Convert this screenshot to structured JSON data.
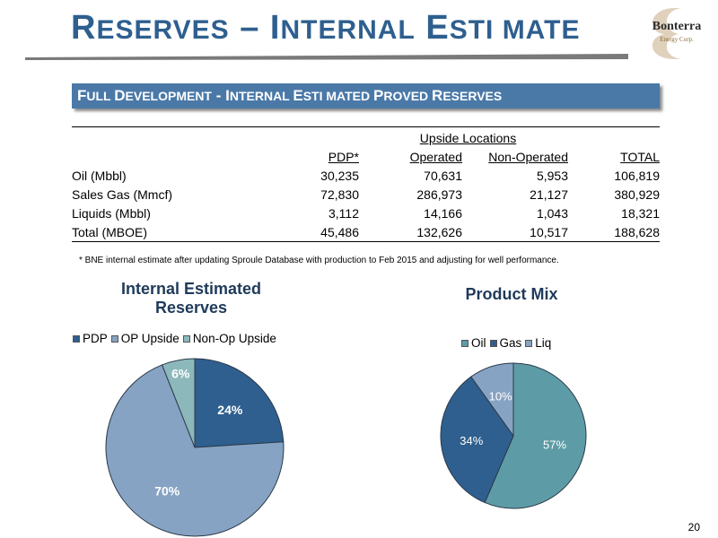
{
  "header": {
    "title_parts": [
      {
        "text": "R",
        "sc": false
      },
      {
        "text": "ESERVES",
        "sc": true
      },
      {
        "text": " – I",
        "sc": false
      },
      {
        "text": "NTERNAL",
        "sc": true
      },
      {
        "text": " E",
        "sc": false
      },
      {
        "text": "STI MATE",
        "sc": true
      }
    ],
    "logo_text": "Bonterra",
    "logo_subtext": "Energy Corp."
  },
  "banner": {
    "parts": [
      {
        "text": "F",
        "big": true
      },
      {
        "text": "ULL ",
        "big": false
      },
      {
        "text": "D",
        "big": true
      },
      {
        "text": "EVELOPMENT",
        "big": false
      },
      {
        "text": " - I",
        "big": true
      },
      {
        "text": "NTERNAL ",
        "big": false
      },
      {
        "text": "E",
        "big": true
      },
      {
        "text": "STI MATED ",
        "big": false
      },
      {
        "text": "P",
        "big": true
      },
      {
        "text": "ROVED ",
        "big": false
      },
      {
        "text": "R",
        "big": true
      },
      {
        "text": "ESERVES",
        "big": false
      }
    ]
  },
  "table": {
    "group_header": "Upside Locations",
    "columns": [
      "",
      "PDP*",
      "Operated",
      "Non-Operated",
      "TOTAL"
    ],
    "rows": [
      [
        "Oil (Mbbl)",
        "30,235",
        "70,631",
        "5,953",
        "106,819"
      ],
      [
        "Sales Gas (Mmcf)",
        "72,830",
        "286,973",
        "21,127",
        "380,929"
      ],
      [
        "Liquids (Mbbl)",
        "3,112",
        "14,166",
        "1,043",
        "18,321"
      ],
      [
        "Total (MBOE)",
        "45,486",
        "132,626",
        "10,517",
        "188,628"
      ]
    ]
  },
  "footnote": "* BNE internal estimate after updating Sproule Database with production to Feb 2015 and adjusting for well performance.",
  "chart_data": [
    {
      "type": "pie",
      "title": "Internal Estimated Reserves",
      "categories": [
        "PDP",
        "OP Upside",
        "Non-Op Upside"
      ],
      "values": [
        24,
        70,
        6
      ],
      "labels": [
        "24%",
        "70%",
        "6%"
      ],
      "colors": [
        "#2f5f8f",
        "#87a3c3",
        "#8cb8bb"
      ],
      "label_colors": [
        "#ffffff",
        "#ffffff",
        "#ffffff"
      ],
      "legend": "top"
    },
    {
      "type": "pie",
      "title": "Product Mix",
      "categories": [
        "Oil",
        "Gas",
        "Liq"
      ],
      "values": [
        57,
        34,
        10
      ],
      "labels": [
        "57%",
        "34%",
        "10%"
      ],
      "colors": [
        "#5d9ca6",
        "#2f5f8f",
        "#87a3c3"
      ],
      "label_colors": [
        "#ffffff",
        "#ffffff",
        "#ffffff"
      ],
      "legend": "top"
    }
  ],
  "page_number": "20"
}
